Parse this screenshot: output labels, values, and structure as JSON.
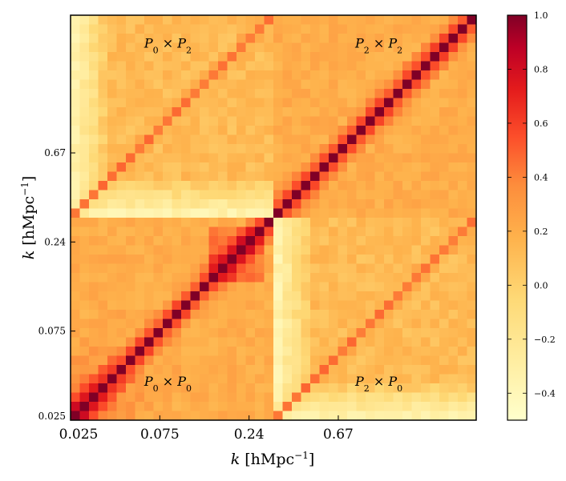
{
  "chart_data": {
    "type": "heatmap",
    "title": "",
    "description_of_blocks": [
      "P0xP0",
      "P0xP2",
      "P2xP0",
      "P2xP2"
    ],
    "n_bins_per_block": 22,
    "xlabel": "k [hMpc⁻¹]",
    "ylabel": "k [hMpc⁻¹]",
    "xlabel_main": "k",
    "xlabel_unit": "[hMpc",
    "xlabel_exp": "−1",
    "xlabel_close": "]",
    "x_tick_labels": [
      "0.025",
      "0.075",
      "0.24",
      "0.67"
    ],
    "y_tick_labels": [
      "0.025",
      "0.075",
      "0.24",
      "0.67"
    ],
    "annotations": [
      {
        "block": "P0xP2",
        "base1": "P",
        "sub1": "0",
        "op": "×",
        "base2": "P",
        "sub2": "2"
      },
      {
        "block": "P2xP2",
        "base1": "P",
        "sub1": "2",
        "op": "×",
        "base2": "P",
        "sub2": "2"
      },
      {
        "block": "P0xP0",
        "base1": "P",
        "sub1": "0",
        "op": "×",
        "base2": "P",
        "sub2": "0"
      },
      {
        "block": "P2xP0",
        "base1": "P",
        "sub1": "2",
        "op": "×",
        "base2": "P",
        "sub2": "0"
      }
    ],
    "colorbar": {
      "range": [
        -0.5,
        1.0
      ],
      "ticks": [
        1.0,
        0.8,
        0.6,
        0.4,
        0.2,
        0.0,
        -0.2,
        -0.4
      ],
      "tick_labels": [
        "1.0",
        "0.8",
        "0.6",
        "0.4",
        "0.2",
        "0.0",
        "−0.2",
        "−0.4"
      ],
      "colormap": "YlOrRd"
    },
    "correlation_model": {
      "diagonal": 1.0,
      "auto_block_offdiag_base": 0.2,
      "cross_block_offdiag_base": 0.12,
      "cross_diag_value": 0.45,
      "low_k_boost": 0.35
    }
  }
}
